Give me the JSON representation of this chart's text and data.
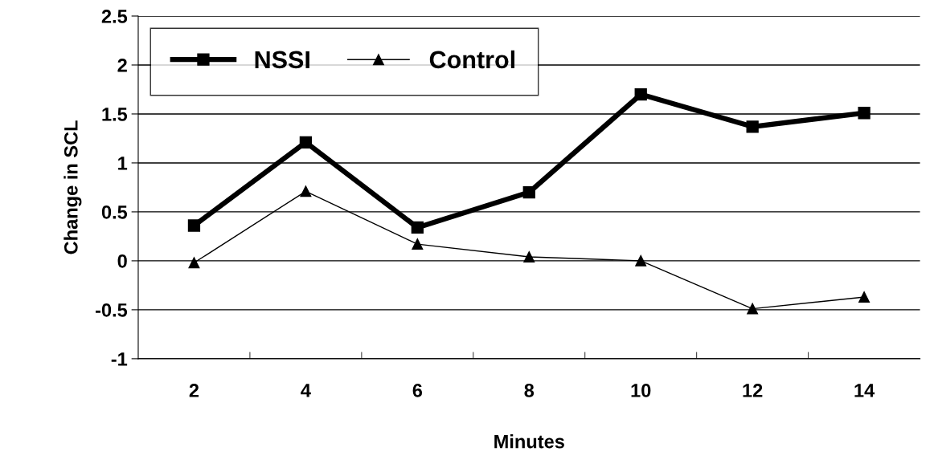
{
  "chart_data": {
    "type": "line",
    "xlabel": "Minutes",
    "ylabel": "Change in SCL",
    "categories": [
      "2",
      "4",
      "6",
      "8",
      "10",
      "12",
      "14"
    ],
    "series": [
      {
        "name": "NSSI",
        "color": "#000000",
        "marker": "square",
        "values": [
          0.36,
          1.21,
          0.34,
          0.7,
          1.7,
          1.37,
          1.51
        ]
      },
      {
        "name": "Control",
        "color": "#000000",
        "marker": "triangle",
        "values": [
          -0.02,
          0.71,
          0.17,
          0.04,
          0.0,
          -0.49,
          -0.37
        ]
      }
    ],
    "ylim": [
      -1,
      2.5
    ],
    "yticks": [
      -1,
      -0.5,
      0,
      0.5,
      1,
      1.5,
      2,
      2.5
    ],
    "grid": "y",
    "legend": "top left",
    "line_style": "solid"
  }
}
